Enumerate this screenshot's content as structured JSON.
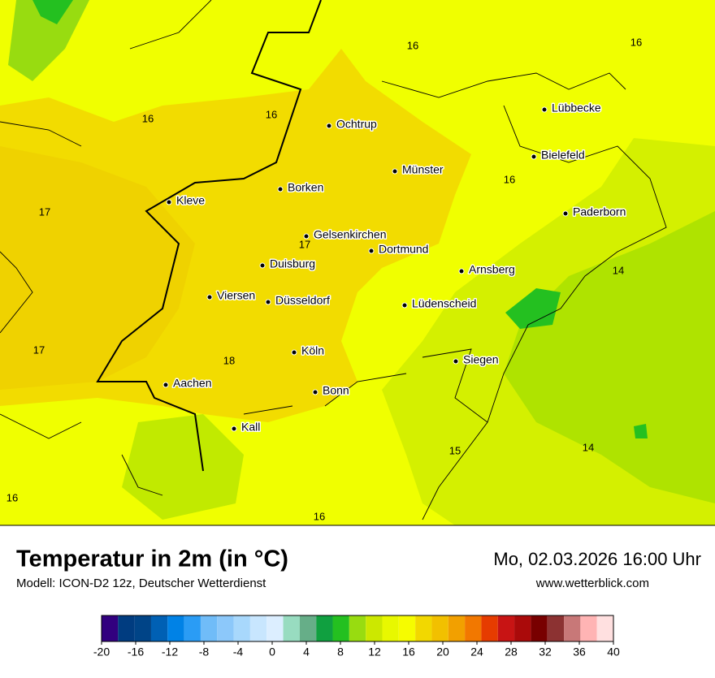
{
  "header": {
    "title": "Temperatur in 2m (in °C)",
    "model": "Modell: ICON-D2 12z, Deutscher Wetterdienst",
    "datetime": "Mo, 02.03.2026 16:00 Uhr",
    "website": "www.wetterblick.com"
  },
  "map": {
    "cities": [
      "Ochtrup",
      "Lübbecke",
      "Bielefeld",
      "Münster",
      "Borken",
      "Kleve",
      "Paderborn",
      "Gelsenkirchen",
      "Dortmund",
      "Duisburg",
      "Arnsberg",
      "Viersen",
      "Düsseldorf",
      "Lüdenscheid",
      "Köln",
      "Siegen",
      "Aachen",
      "Bonn",
      "Kall"
    ],
    "temperature_labels": [
      16,
      16,
      16,
      16,
      16,
      17,
      17,
      14,
      17,
      18,
      15,
      14,
      16,
      16
    ]
  },
  "legend": {
    "ticks": [
      -20,
      -16,
      -12,
      -8,
      -4,
      0,
      4,
      8,
      12,
      16,
      20,
      24,
      28,
      32,
      36,
      40
    ],
    "colors": [
      "#32007f",
      "#003c80",
      "#004487",
      "#0060b4",
      "#0082e6",
      "#2a9cf5",
      "#70bcf8",
      "#8cc8fa",
      "#a8d8fc",
      "#c8e6fe",
      "#dceeff",
      "#98dcc0",
      "#66ae88",
      "#10a040",
      "#24c020",
      "#98dc10",
      "#cce800",
      "#e8f800",
      "#f6fc00",
      "#f2d800",
      "#f2c000",
      "#f2a000",
      "#f27800",
      "#e63c00",
      "#c81414",
      "#aa0a0a",
      "#780000",
      "#8c3232",
      "#c87878",
      "#ffb4b4",
      "#ffe0e0"
    ]
  }
}
